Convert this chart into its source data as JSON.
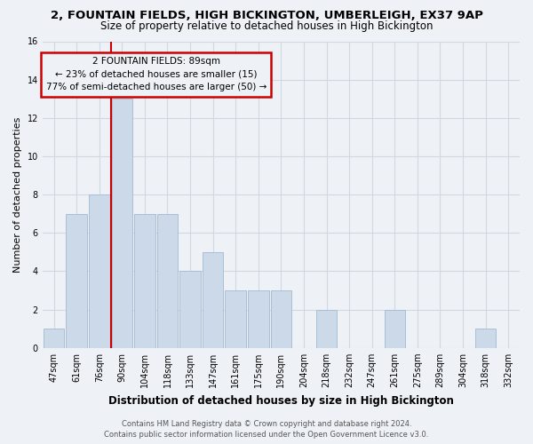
{
  "title": "2, FOUNTAIN FIELDS, HIGH BICKINGTON, UMBERLEIGH, EX37 9AP",
  "subtitle": "Size of property relative to detached houses in High Bickington",
  "xlabel": "Distribution of detached houses by size in High Bickington",
  "ylabel": "Number of detached properties",
  "footnote1": "Contains HM Land Registry data © Crown copyright and database right 2024.",
  "footnote2": "Contains public sector information licensed under the Open Government Licence v3.0.",
  "bar_labels": [
    "47sqm",
    "61sqm",
    "76sqm",
    "90sqm",
    "104sqm",
    "118sqm",
    "133sqm",
    "147sqm",
    "161sqm",
    "175sqm",
    "190sqm",
    "204sqm",
    "218sqm",
    "232sqm",
    "247sqm",
    "261sqm",
    "275sqm",
    "289sqm",
    "304sqm",
    "318sqm",
    "332sqm"
  ],
  "bar_values": [
    1,
    7,
    8,
    13,
    7,
    7,
    4,
    5,
    3,
    3,
    3,
    0,
    2,
    0,
    0,
    2,
    0,
    0,
    0,
    1,
    0
  ],
  "bar_color": "#ccd9e8",
  "bar_edge_color": "#aabfd4",
  "highlight_line_color": "#cc0000",
  "highlight_bar_index": 3,
  "annotation_text_line1": "2 FOUNTAIN FIELDS: 89sqm",
  "annotation_text_line2": "← 23% of detached houses are smaller (15)",
  "annotation_text_line3": "77% of semi-detached houses are larger (50) →",
  "annotation_box_color": "#cc0000",
  "ylim": [
    0,
    16
  ],
  "yticks": [
    0,
    2,
    4,
    6,
    8,
    10,
    12,
    14,
    16
  ],
  "grid_color": "#d0d8e4",
  "background_color": "#eef2f7",
  "title_fontsize": 9.5,
  "subtitle_fontsize": 8.5,
  "ylabel_fontsize": 8,
  "xlabel_fontsize": 8.5,
  "tick_fontsize": 7,
  "annot_fontsize": 7.5,
  "footnote_fontsize": 6
}
